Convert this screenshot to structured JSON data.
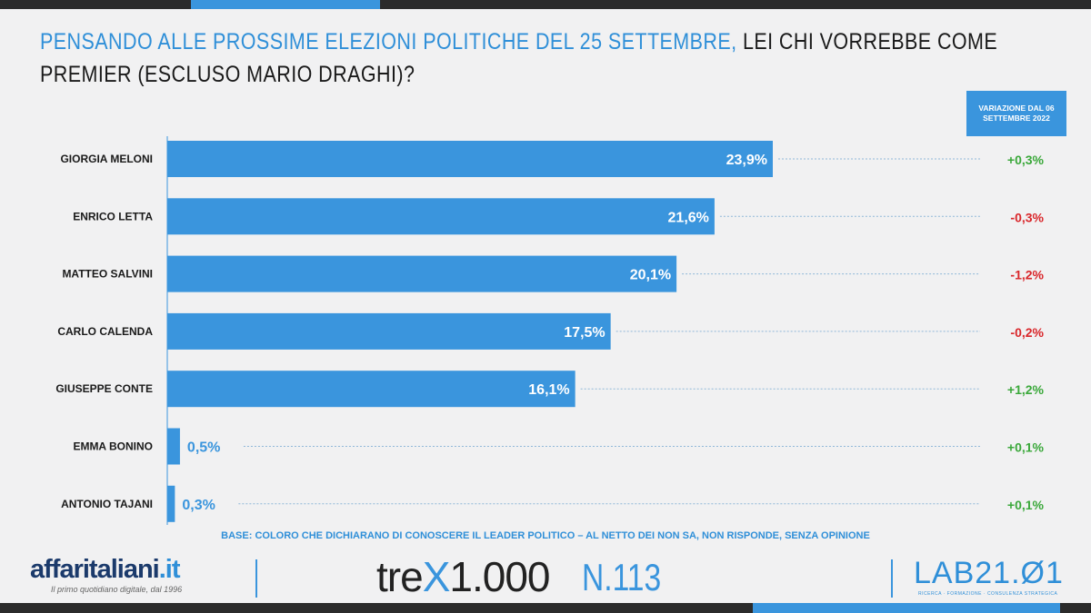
{
  "header": {
    "title_highlight": "PENSANDO ALLE PROSSIME ELEZIONI POLITICHE DEL 25 SETTEMBRE,",
    "title_rest": " LEI CHI VORREBBE COME PREMIER (ESCLUSO MARIO DRAGHI)?",
    "variation_header": "VARIAZIONE DAL 06 SETTEMBRE 2022"
  },
  "chart_data": {
    "type": "bar",
    "orientation": "horizontal",
    "title": "PENSANDO ALLE PROSSIME ELEZIONI POLITICHE DEL 25 SETTEMBRE, LEI CHI VORREBBE COME PREMIER (ESCLUSO MARIO DRAGHI)?",
    "categories": [
      "GIORGIA MELONI",
      "ENRICO LETTA",
      "MATTEO SALVINI",
      "CARLO CALENDA",
      "GIUSEPPE CONTE",
      "EMMA BONINO",
      "ANTONIO TAJANI"
    ],
    "values": [
      23.9,
      21.6,
      20.1,
      17.5,
      16.1,
      0.5,
      0.3
    ],
    "value_labels": [
      "23,9%",
      "21,6%",
      "20,1%",
      "17,5%",
      "16,1%",
      "0,5%",
      "0,3%"
    ],
    "variation": [
      "+0,3%",
      "-0,3%",
      "-1,2%",
      "-0,2%",
      "+1,2%",
      "+0,1%",
      "+0,1%"
    ],
    "variation_values": [
      0.3,
      -0.3,
      -1.2,
      -0.2,
      1.2,
      0.1,
      0.1
    ],
    "unit": "%",
    "xlim": [
      0,
      24
    ],
    "colors": {
      "bar": "#3a95dd",
      "positive": "#3aa83a",
      "negative": "#d9262a"
    }
  },
  "footer": {
    "base_note": "BASE: COLORO CHE DICHIARANO DI CONOSCERE IL LEADER POLITICO – AL NETTO DEI NON SA, NON RISPONDE, SENZA OPINIONE",
    "logo_affari": "affaritaliani",
    "logo_affari_tld": ".it",
    "logo_affari_sub": "Il primo quotidiano digitale, dal 1996",
    "logo_trex_a": "tre",
    "logo_trex_x": "X",
    "logo_trex_b": "1.000",
    "issue": "N.113",
    "logo_lab": "LAB21.Ø1",
    "logo_lab_sub": "RICERCA · FORMAZIONE · CONSULENZA STRATEGICA"
  }
}
